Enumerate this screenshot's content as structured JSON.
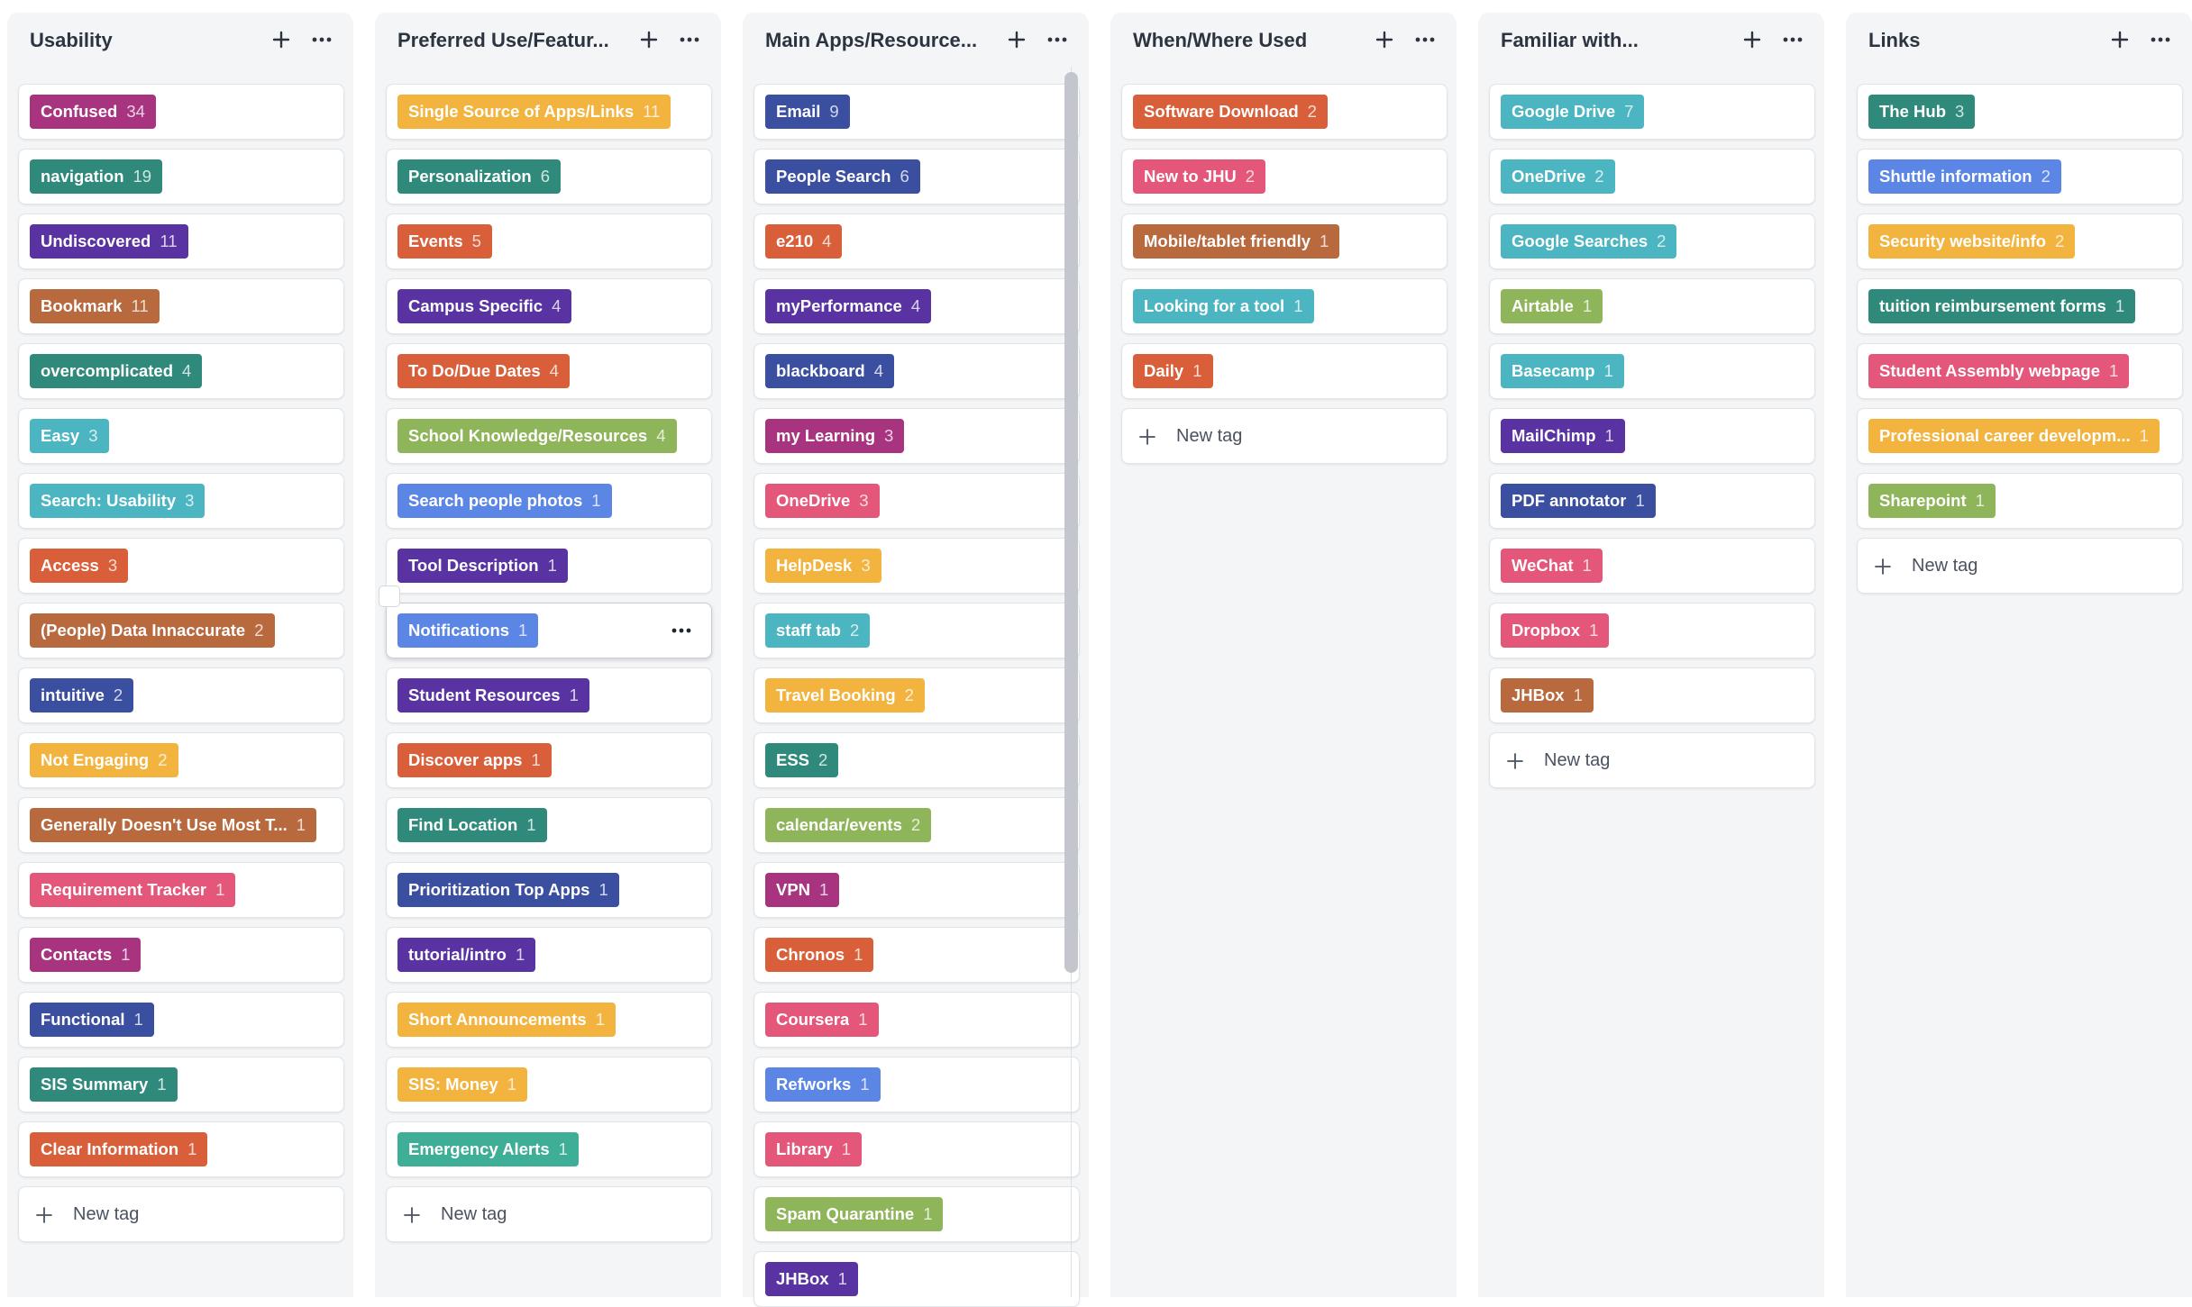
{
  "new_tag_label": "New tag",
  "icons": {
    "add": "plus-icon",
    "menu": "more-horizontal-icon"
  },
  "columns": [
    {
      "title": "Usability",
      "tags": [
        {
          "name": "Confused",
          "count": "34",
          "color": "#a8347f"
        },
        {
          "name": "navigation",
          "count": "19",
          "color": "#2f8a7b"
        },
        {
          "name": "Undiscovered",
          "count": "11",
          "color": "#5a33a3"
        },
        {
          "name": "Bookmark",
          "count": "11",
          "color": "#b8693e"
        },
        {
          "name": "overcomplicated",
          "count": "4",
          "color": "#2f8a7b"
        },
        {
          "name": "Easy",
          "count": "3",
          "color": "#4bb5c1"
        },
        {
          "name": "Search: Usability",
          "count": "3",
          "color": "#4bb5c1"
        },
        {
          "name": "Access",
          "count": "3",
          "color": "#d95f3a"
        },
        {
          "name": "(People) Data Innaccurate",
          "count": "2",
          "color": "#b8693e"
        },
        {
          "name": "intuitive",
          "count": "2",
          "color": "#3b4fa0"
        },
        {
          "name": "Not Engaging",
          "count": "2",
          "color": "#f3b43f"
        },
        {
          "name": "Generally Doesn't Use Most T...",
          "count": "1",
          "color": "#b8693e"
        },
        {
          "name": "Requirement Tracker",
          "count": "1",
          "color": "#e4567a"
        },
        {
          "name": "Contacts",
          "count": "1",
          "color": "#a8347f"
        },
        {
          "name": "Functional",
          "count": "1",
          "color": "#3b4fa0"
        },
        {
          "name": "SIS Summary",
          "count": "1",
          "color": "#2f8a7b"
        },
        {
          "name": "Clear Information",
          "count": "1",
          "color": "#d95f3a"
        }
      ]
    },
    {
      "title": "Preferred Use/Featur...",
      "tags": [
        {
          "name": "Single Source of Apps/Links",
          "count": "11",
          "color": "#f3b43f"
        },
        {
          "name": "Personalization",
          "count": "6",
          "color": "#2f8a7b"
        },
        {
          "name": "Events",
          "count": "5",
          "color": "#d95f3a"
        },
        {
          "name": "Campus Specific",
          "count": "4",
          "color": "#5a33a3"
        },
        {
          "name": "To Do/Due Dates",
          "count": "4",
          "color": "#d95f3a"
        },
        {
          "name": "School Knowledge/Resources",
          "count": "4",
          "color": "#8fb55a"
        },
        {
          "name": "Search people photos",
          "count": "1",
          "color": "#5b86e5"
        },
        {
          "name": "Tool Description",
          "count": "1",
          "color": "#5a33a3"
        },
        {
          "name": "Notifications",
          "count": "1",
          "color": "#5b86e5"
        },
        {
          "name": "Student Resources",
          "count": "1",
          "color": "#5a33a3"
        },
        {
          "name": "Discover apps",
          "count": "1",
          "color": "#d95f3a"
        },
        {
          "name": "Find Location",
          "count": "1",
          "color": "#2f8a7b"
        },
        {
          "name": "Prioritization Top Apps",
          "count": "1",
          "color": "#3b4fa0"
        },
        {
          "name": "tutorial/intro",
          "count": "1",
          "color": "#5a33a3"
        },
        {
          "name": "Short Announcements",
          "count": "1",
          "color": "#f3b43f"
        },
        {
          "name": "SIS: Money",
          "count": "1",
          "color": "#f3b43f"
        },
        {
          "name": "Emergency Alerts",
          "count": "1",
          "color": "#3fae96"
        }
      ]
    },
    {
      "title": "Main Apps/Resource...",
      "tags": [
        {
          "name": "Email",
          "count": "9",
          "color": "#3b4fa0"
        },
        {
          "name": "People Search",
          "count": "6",
          "color": "#3b4fa0"
        },
        {
          "name": "e210",
          "count": "4",
          "color": "#d95f3a"
        },
        {
          "name": "myPerformance",
          "count": "4",
          "color": "#5a33a3"
        },
        {
          "name": "blackboard",
          "count": "4",
          "color": "#3b4fa0"
        },
        {
          "name": "my Learning",
          "count": "3",
          "color": "#a8347f"
        },
        {
          "name": "OneDrive",
          "count": "3",
          "color": "#e4567a"
        },
        {
          "name": "HelpDesk",
          "count": "3",
          "color": "#f3b43f"
        },
        {
          "name": "staff tab",
          "count": "2",
          "color": "#4bb5c1"
        },
        {
          "name": "Travel Booking",
          "count": "2",
          "color": "#f3b43f"
        },
        {
          "name": "ESS",
          "count": "2",
          "color": "#2f8a7b"
        },
        {
          "name": "calendar/events",
          "count": "2",
          "color": "#8fb55a"
        },
        {
          "name": "VPN",
          "count": "1",
          "color": "#a8347f"
        },
        {
          "name": "Chronos",
          "count": "1",
          "color": "#d95f3a"
        },
        {
          "name": "Coursera",
          "count": "1",
          "color": "#e4567a"
        },
        {
          "name": "Refworks",
          "count": "1",
          "color": "#5b86e5"
        },
        {
          "name": "Library",
          "count": "1",
          "color": "#e4567a"
        },
        {
          "name": "Spam Quarantine",
          "count": "1",
          "color": "#8fb55a"
        },
        {
          "name": "JHBox",
          "count": "1",
          "color": "#5a33a3"
        }
      ]
    },
    {
      "title": "When/Where Used",
      "tags": [
        {
          "name": "Software Download",
          "count": "2",
          "color": "#d95f3a"
        },
        {
          "name": "New to JHU",
          "count": "2",
          "color": "#e4567a"
        },
        {
          "name": "Mobile/tablet friendly",
          "count": "1",
          "color": "#b8693e"
        },
        {
          "name": "Looking for a tool",
          "count": "1",
          "color": "#4bb5c1"
        },
        {
          "name": "Daily",
          "count": "1",
          "color": "#d95f3a"
        }
      ]
    },
    {
      "title": "Familiar with...",
      "tags": [
        {
          "name": "Google Drive",
          "count": "7",
          "color": "#4bb5c1"
        },
        {
          "name": "OneDrive",
          "count": "2",
          "color": "#4bb5c1"
        },
        {
          "name": "Google Searches",
          "count": "2",
          "color": "#4bb5c1"
        },
        {
          "name": "Airtable",
          "count": "1",
          "color": "#8fb55a"
        },
        {
          "name": "Basecamp",
          "count": "1",
          "color": "#4bb5c1"
        },
        {
          "name": "MailChimp",
          "count": "1",
          "color": "#5a33a3"
        },
        {
          "name": "PDF annotator",
          "count": "1",
          "color": "#3b4fa0"
        },
        {
          "name": "WeChat",
          "count": "1",
          "color": "#e4567a"
        },
        {
          "name": "Dropbox",
          "count": "1",
          "color": "#e4567a"
        },
        {
          "name": "JHBox",
          "count": "1",
          "color": "#b8693e"
        }
      ]
    },
    {
      "title": "Links",
      "tags": [
        {
          "name": "The Hub",
          "count": "3",
          "color": "#2f8a7b"
        },
        {
          "name": "Shuttle information",
          "count": "2",
          "color": "#5b86e5"
        },
        {
          "name": "Security website/info",
          "count": "2",
          "color": "#f3b43f"
        },
        {
          "name": "tuition reimbursement forms",
          "count": "1",
          "color": "#2f8a7b"
        },
        {
          "name": "Student Assembly webpage",
          "count": "1",
          "color": "#e4567a"
        },
        {
          "name": "Professional career developm...",
          "count": "1",
          "color": "#f3b43f"
        },
        {
          "name": "Sharepoint",
          "count": "1",
          "color": "#8fb55a"
        }
      ]
    }
  ]
}
